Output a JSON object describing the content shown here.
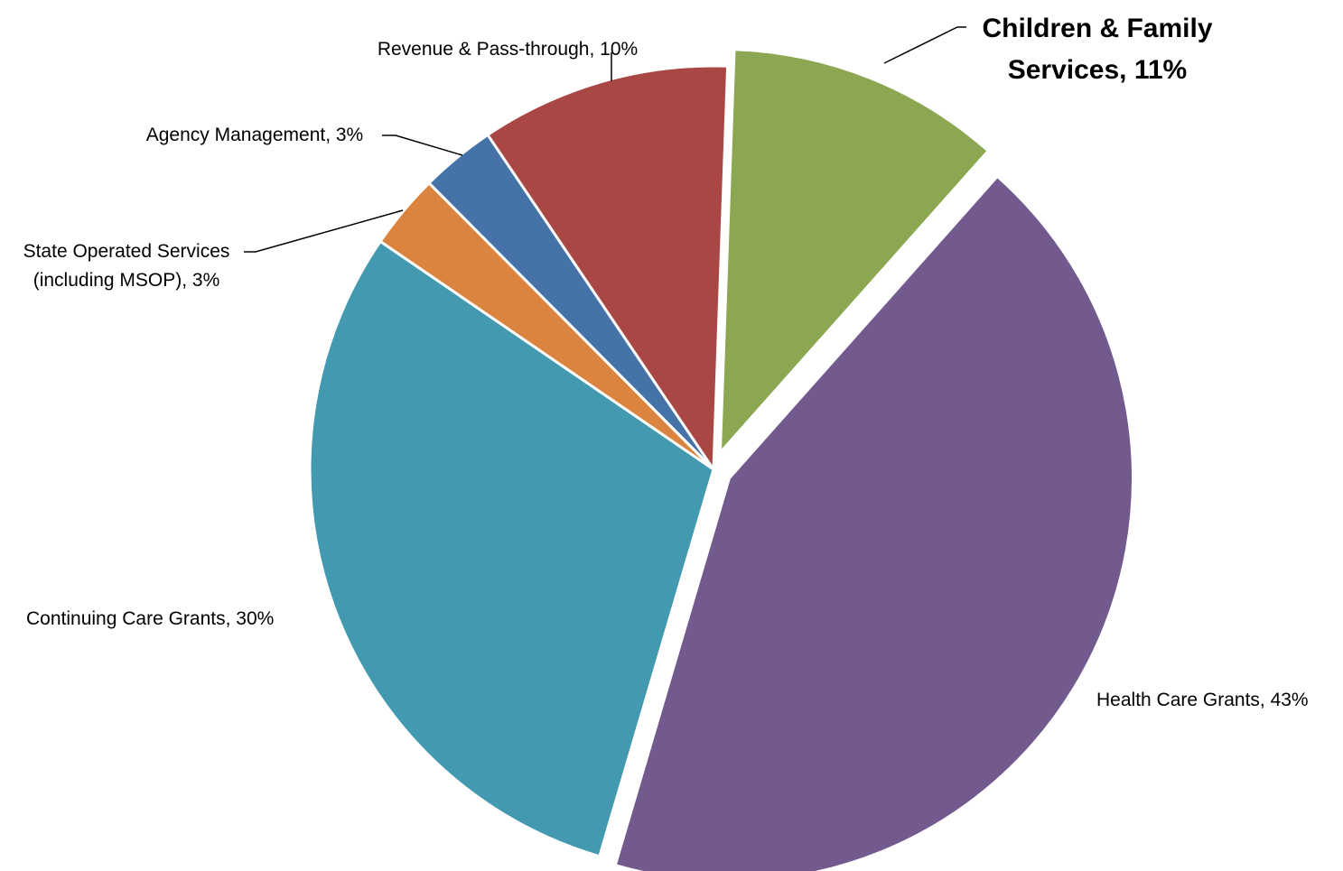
{
  "chart_data": {
    "type": "pie",
    "title": "",
    "start_angle_deg": 2,
    "direction": "clockwise",
    "slices": [
      {
        "name": "Children & Family Services",
        "label_lines": [
          "Children & Family",
          "Services, 11%"
        ],
        "value": 11,
        "color": "#8BA751",
        "exploded": true,
        "emphasized": true
      },
      {
        "name": "Health Care Grants",
        "label_lines": [
          "Health Care Grants, 43%"
        ],
        "value": 43,
        "color": "#72598E",
        "exploded": true,
        "emphasized": false
      },
      {
        "name": "Continuing Care Grants",
        "label_lines": [
          "Continuing Care Grants, 30%"
        ],
        "value": 30,
        "color": "#4399B0",
        "exploded": false,
        "emphasized": false
      },
      {
        "name": "State Operated Services (including MSOP)",
        "label_lines": [
          "State Operated Services",
          "(including MSOP), 3%"
        ],
        "value": 3,
        "color": "#DA843F",
        "exploded": false,
        "emphasized": false
      },
      {
        "name": "Agency Management",
        "label_lines": [
          "Agency Management, 3%"
        ],
        "value": 3,
        "color": "#4572A7",
        "exploded": false,
        "emphasized": false
      },
      {
        "name": "Revenue & Pass-through",
        "label_lines": [
          "Revenue & Pass-through, 10%"
        ],
        "value": 10,
        "color": "#A94745",
        "exploded": false,
        "emphasized": false
      }
    ]
  }
}
